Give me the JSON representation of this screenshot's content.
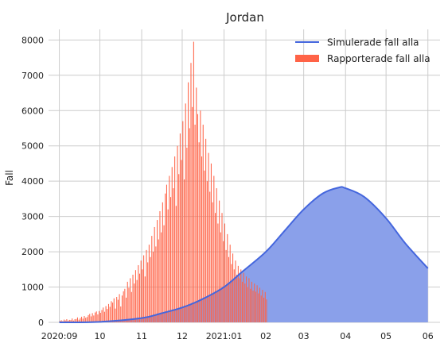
{
  "chart_data": {
    "type": "bar",
    "title": "Jordan",
    "xlabel": "",
    "ylabel": "Fall",
    "grid": true,
    "legend_position": "top-right",
    "colors": {
      "simulated_line": "#4466dd",
      "simulated_fill": "#8aa0ea",
      "reported_bar": "#ff6347",
      "grid": "#cccccc",
      "plot_background": "#ffffff"
    },
    "x_axis": {
      "type": "date",
      "range": [
        "2020-08-24",
        "2021-06-10"
      ],
      "ticks": [
        {
          "date": "2020-09-01",
          "label": "2020:09"
        },
        {
          "date": "2020-10-01",
          "label": "10"
        },
        {
          "date": "2020-11-01",
          "label": "11"
        },
        {
          "date": "2020-12-01",
          "label": "12"
        },
        {
          "date": "2021-01-01",
          "label": "2021:01"
        },
        {
          "date": "2021-02-01",
          "label": "02"
        },
        {
          "date": "2021-03-01",
          "label": "03"
        },
        {
          "date": "2021-04-01",
          "label": "04"
        },
        {
          "date": "2021-05-01",
          "label": "05"
        },
        {
          "date": "2021-06-01",
          "label": "06"
        }
      ]
    },
    "y_axis": {
      "range": [
        0,
        8300
      ],
      "ticks": [
        0,
        1000,
        2000,
        3000,
        4000,
        5000,
        6000,
        7000,
        8000
      ]
    },
    "series": [
      {
        "name": "Simulerade fall alla",
        "kind": "area-line",
        "points": [
          {
            "x": "2020-09-01",
            "y": 0
          },
          {
            "x": "2020-10-01",
            "y": 15
          },
          {
            "x": "2020-11-01",
            "y": 120
          },
          {
            "x": "2020-11-15",
            "y": 250
          },
          {
            "x": "2020-12-01",
            "y": 420
          },
          {
            "x": "2020-12-15",
            "y": 640
          },
          {
            "x": "2021-01-01",
            "y": 1000
          },
          {
            "x": "2021-01-15",
            "y": 1450
          },
          {
            "x": "2021-02-01",
            "y": 2000
          },
          {
            "x": "2021-02-15",
            "y": 2600
          },
          {
            "x": "2021-03-01",
            "y": 3200
          },
          {
            "x": "2021-03-15",
            "y": 3650
          },
          {
            "x": "2021-03-27",
            "y": 3820
          },
          {
            "x": "2021-04-01",
            "y": 3800
          },
          {
            "x": "2021-04-15",
            "y": 3550
          },
          {
            "x": "2021-05-01",
            "y": 2950
          },
          {
            "x": "2021-05-15",
            "y": 2250
          },
          {
            "x": "2021-06-01",
            "y": 1530
          }
        ]
      },
      {
        "name": "Rapporterade fall alla",
        "kind": "bar",
        "start_date": "2020-09-01",
        "values": [
          42,
          60,
          35,
          78,
          55,
          90,
          48,
          70,
          65,
          110,
          52,
          88,
          95,
          140,
          75,
          120,
          160,
          105,
          180,
          130,
          150,
          205,
          240,
          170,
          260,
          195,
          280,
          310,
          225,
          320,
          270,
          350,
          420,
          300,
          460,
          380,
          520,
          440,
          600,
          560,
          680,
          390,
          720,
          640,
          800,
          450,
          760,
          880,
          950,
          700,
          1150,
          980,
          1250,
          860,
          1350,
          1100,
          1480,
          1200,
          1620,
          1380,
          1750,
          1500,
          1900,
          1300,
          2050,
          1700,
          2200,
          1850,
          2450,
          2000,
          2700,
          2150,
          2900,
          2350,
          3150,
          2550,
          3400,
          2750,
          3650,
          3900,
          3200,
          4150,
          3550,
          4400,
          3800,
          4700,
          3300,
          5000,
          4200,
          5350,
          4600,
          5700,
          4050,
          6200,
          4950,
          6800,
          5500,
          7350,
          6100,
          7950,
          5600,
          6650,
          5900,
          5100,
          6000,
          4700,
          5600,
          4300,
          5200,
          4000,
          4800,
          3700,
          4500,
          3400,
          4150,
          3100,
          3800,
          2800,
          3450,
          2550,
          3100,
          2300,
          2800,
          2050,
          2500,
          1850,
          2200,
          1650,
          1950,
          1500,
          1750,
          1350,
          1600,
          1250,
          1500,
          1150,
          1400,
          1100,
          1300,
          1000,
          1250,
          950,
          1150,
          900,
          1100,
          870,
          1050,
          820,
          980,
          760,
          920,
          700,
          860,
          650
        ]
      }
    ]
  }
}
